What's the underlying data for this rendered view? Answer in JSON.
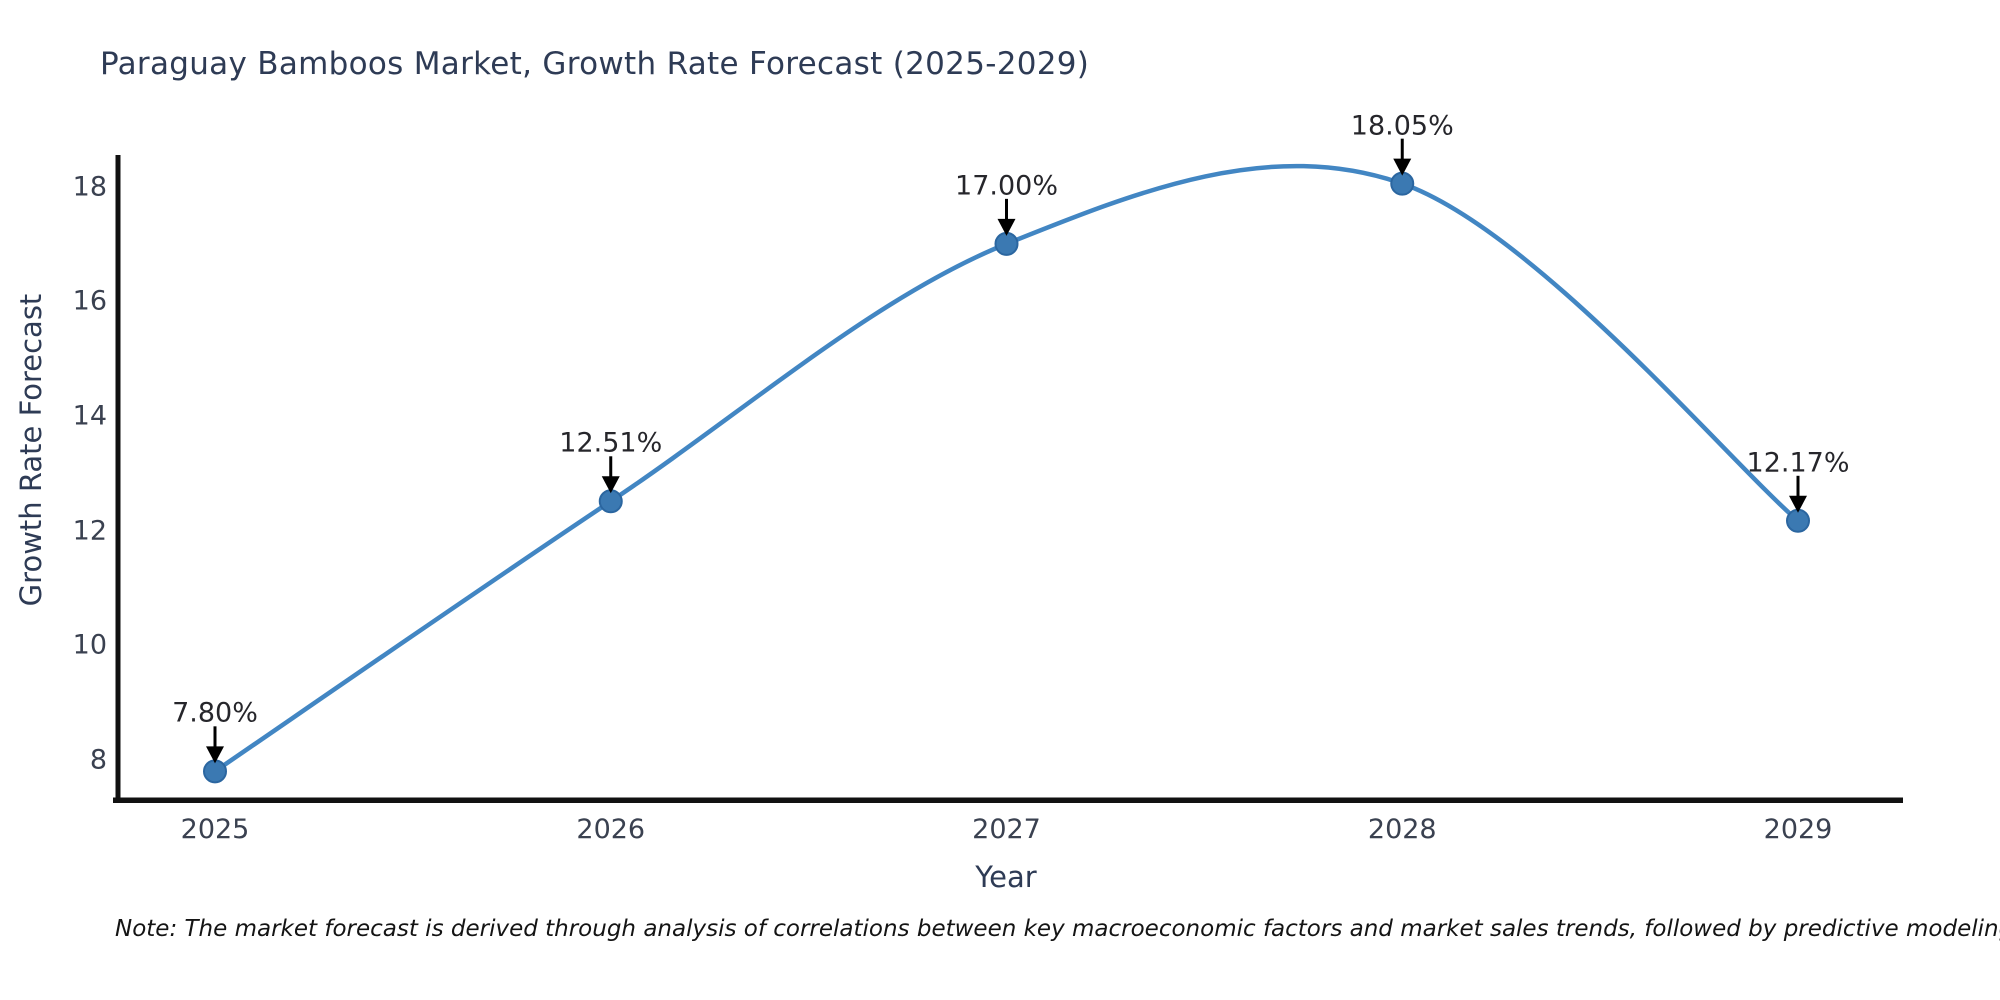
{
  "title": "Paraguay Bamboos Market, Growth Rate Forecast (2025-2029)",
  "note": "Note: The market forecast is derived through analysis of correlations between key macroeconomic factors and market sales trends, followed by predictive modeling to project future sales",
  "chart_data": {
    "type": "line",
    "title": "Paraguay Bamboos Market, Growth Rate Forecast (2025-2029)",
    "xlabel": "Year",
    "ylabel": "Growth Rate Forecast",
    "x": [
      2025,
      2026,
      2027,
      2028,
      2029
    ],
    "values": [
      7.8,
      12.51,
      17.0,
      18.05,
      12.17
    ],
    "point_labels": [
      "7.80%",
      "12.51%",
      "17.00%",
      "18.05%",
      "12.17%"
    ],
    "yticks": [
      8,
      10,
      12,
      14,
      16,
      18
    ],
    "ylim": [
      7.3,
      18.55
    ],
    "grid": false,
    "legend": "none",
    "curve": "spline",
    "line_color": "#4286c3",
    "marker_color": "#3b79b2",
    "marker_edge_color": "#2b66a0",
    "axis_color": "#111111",
    "annotation_arrow_color": "#000000"
  }
}
